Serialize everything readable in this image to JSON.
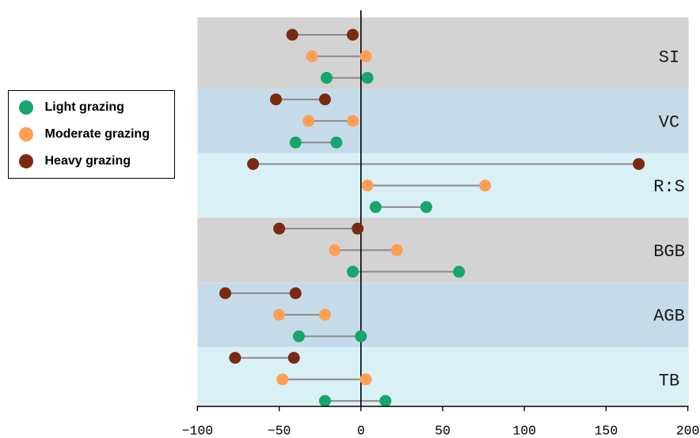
{
  "chart_data": {
    "type": "scatter",
    "categories": [
      "SI",
      "VC",
      "R:S",
      "BGB",
      "AGB",
      "TB"
    ],
    "xlim": [
      -100,
      200
    ],
    "xticks": [
      -100,
      -50,
      0,
      50,
      100,
      150,
      200
    ],
    "xtick_labels": [
      "−100",
      "−50",
      "0",
      "50",
      "100",
      "150",
      "200"
    ],
    "reference_line_x": 0,
    "series": [
      {
        "name": "Light grazing",
        "color": "#16A66B",
        "ranges": [
          [
            -21,
            4
          ],
          [
            -40,
            -15
          ],
          [
            9,
            40
          ],
          [
            -5,
            60
          ],
          [
            -38,
            0
          ],
          [
            -22,
            15
          ]
        ]
      },
      {
        "name": "Moderate grazing",
        "color": "#FF9E54",
        "ranges": [
          [
            -30,
            3
          ],
          [
            -32,
            -5
          ],
          [
            4,
            76
          ],
          [
            -16,
            22
          ],
          [
            -50,
            -22
          ],
          [
            -48,
            3
          ]
        ]
      },
      {
        "name": "Heavy grazing",
        "color": "#7B2A12",
        "ranges": [
          [
            -42,
            -5
          ],
          [
            -52,
            -22
          ],
          [
            -66,
            170
          ],
          [
            -50,
            -2
          ],
          [
            -83,
            -40
          ],
          [
            -77,
            -41
          ]
        ]
      }
    ],
    "band_colors": [
      "#D3D3D3",
      "#C6DBEA",
      "#D9F0F7",
      "#D3D3D3",
      "#C6DBEA",
      "#D9F0F7"
    ],
    "connector_color": "#8A8A8A",
    "legend": "left",
    "grid": false
  }
}
